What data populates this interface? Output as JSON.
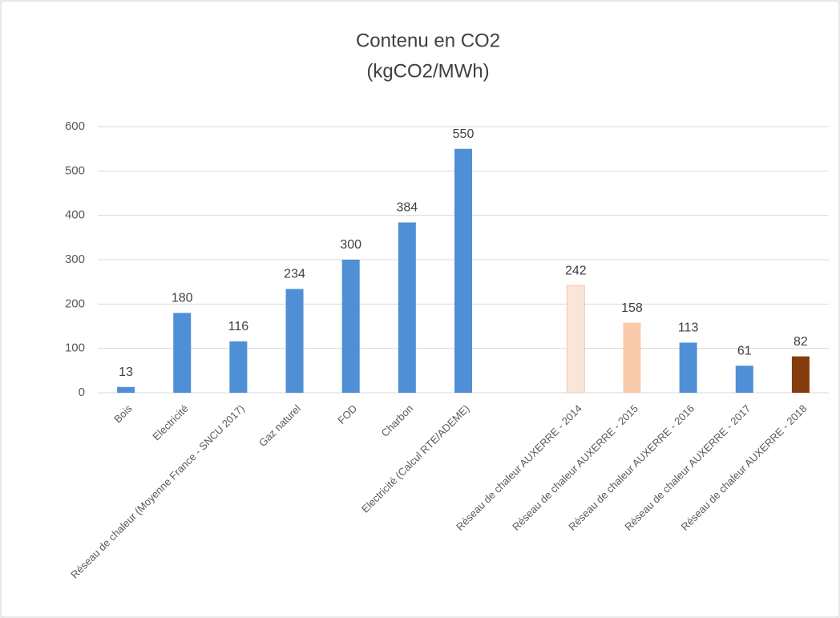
{
  "chart_data": {
    "type": "bar",
    "title": "Contenu en CO2",
    "subtitle": "(kgCO2/MWh)",
    "categories": [
      "Bois",
      "Electricité",
      "Réseau de chaleur (Moyenne France - SNCU 2017)",
      "Gaz naturel",
      "FOD",
      "Charbon",
      "Electricité (Calcul RTE/ADEME)",
      null,
      "Réseau de chaleur AUXERRE - 2014",
      "Réseau de chaleur AUXERRE - 2015",
      "Réseau de chaleur AUXERRE - 2016",
      "Réseau de chaleur AUXERRE - 2017",
      "Réseau de chaleur AUXERRE - 2018"
    ],
    "values": [
      13,
      180,
      116,
      234,
      300,
      384,
      550,
      null,
      242,
      158,
      113,
      61,
      82
    ],
    "colors": [
      "#4f8fd6",
      "#4f8fd6",
      "#4f8fd6",
      "#4f8fd6",
      "#4f8fd6",
      "#4f8fd6",
      "#4f8fd6",
      null,
      "#fbe5d6",
      "#f8cbad",
      "#4f8fd6",
      "#4f8fd6",
      "#843c0c"
    ],
    "ylim": [
      0,
      600
    ],
    "yticks": [
      0,
      100,
      200,
      300,
      400,
      500,
      600
    ],
    "grid": true
  }
}
